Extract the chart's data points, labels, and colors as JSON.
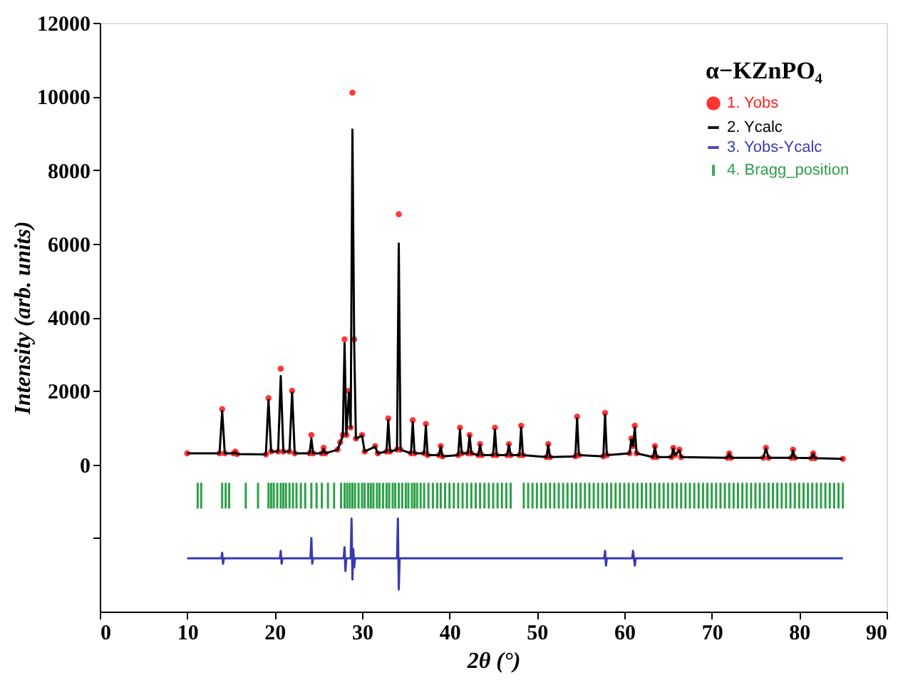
{
  "chart_data": {
    "type": "scatter",
    "xlabel": "2θ (°)",
    "ylabel": "Intensity (arb. units)",
    "legend_title": "α−KZnPO₄",
    "x": [
      10,
      13.7,
      14.0,
      14.3,
      15.3,
      15.5,
      15.7,
      19.0,
      19.3,
      19.6,
      20.4,
      20.7,
      21.0,
      21.7,
      22.0,
      22.3,
      24.0,
      24.2,
      24.4,
      25.4,
      25.6,
      25.8,
      27.2,
      27.5,
      27.8,
      28.0,
      28.2,
      28.5,
      28.7,
      28.9,
      29.1,
      29.3,
      30.0,
      30.3,
      31.5,
      31.8,
      32.8,
      33.0,
      33.2,
      34.0,
      34.2,
      34.4,
      35.6,
      35.8,
      36.0,
      37.1,
      37.3,
      37.5,
      38.8,
      39.0,
      39.2,
      41.0,
      41.2,
      41.4,
      42.1,
      42.3,
      42.5,
      43.3,
      43.5,
      43.7,
      45.0,
      45.2,
      45.4,
      46.6,
      46.8,
      47.0,
      48.0,
      48.2,
      48.4,
      51.1,
      51.3,
      51.5,
      54.4,
      54.6,
      54.8,
      57.6,
      57.8,
      58.0,
      60.6,
      60.8,
      61.0,
      61.2,
      61.4,
      63.3,
      63.5,
      63.7,
      65.4,
      65.6,
      65.8,
      66.3,
      66.5,
      71.8,
      72.0,
      72.2,
      75.9,
      76.2,
      76.5,
      79.1,
      79.3,
      79.5,
      81.4,
      81.6,
      81.8,
      85
    ],
    "series": [
      {
        "name": "1. Yobs",
        "marker": "circle",
        "color": "#ff2020",
        "values": [
          300,
          300,
          1500,
          300,
          300,
          350,
          280,
          270,
          1800,
          350,
          350,
          2600,
          350,
          350,
          2000,
          300,
          300,
          800,
          300,
          300,
          450,
          300,
          400,
          600,
          800,
          3400,
          800,
          2000,
          1000,
          10100,
          3400,
          700,
          800,
          350,
          500,
          300,
          350,
          1250,
          350,
          400,
          6800,
          400,
          300,
          1200,
          300,
          300,
          1100,
          250,
          250,
          500,
          220,
          250,
          1000,
          300,
          300,
          800,
          300,
          250,
          550,
          250,
          250,
          1000,
          250,
          250,
          550,
          250,
          250,
          1050,
          250,
          200,
          550,
          200,
          220,
          1300,
          250,
          220,
          1400,
          250,
          300,
          700,
          500,
          1050,
          300,
          200,
          500,
          200,
          200,
          450,
          250,
          400,
          200,
          180,
          300,
          180,
          180,
          450,
          180,
          180,
          400,
          180,
          170,
          300,
          170,
          150
        ]
      },
      {
        "name": "2. Ycalc",
        "type": "line",
        "color": "#000000",
        "values": [
          300,
          300,
          1450,
          300,
          300,
          330,
          280,
          270,
          1750,
          350,
          350,
          2400,
          350,
          350,
          1950,
          300,
          300,
          700,
          300,
          300,
          420,
          300,
          400,
          580,
          780,
          3300,
          800,
          1950,
          1000,
          9100,
          3300,
          700,
          780,
          350,
          480,
          300,
          350,
          1200,
          350,
          400,
          6000,
          400,
          300,
          1150,
          300,
          300,
          1050,
          250,
          250,
          480,
          220,
          250,
          950,
          300,
          300,
          780,
          300,
          250,
          530,
          250,
          250,
          950,
          250,
          250,
          530,
          250,
          250,
          1000,
          250,
          200,
          530,
          200,
          220,
          1250,
          250,
          220,
          1350,
          250,
          300,
          680,
          500,
          1000,
          300,
          200,
          480,
          200,
          200,
          430,
          250,
          380,
          200,
          180,
          290,
          180,
          180,
          430,
          180,
          180,
          380,
          180,
          170,
          290,
          170,
          150
        ]
      },
      {
        "name": "3. Yobs-Ycalc",
        "type": "line",
        "color": "#3a3ab0",
        "x": [
          10,
          13.9,
          14.0,
          14.1,
          14.2,
          20.6,
          20.7,
          20.8,
          20.9,
          24.1,
          24.2,
          24.3,
          24.4,
          27.9,
          28.0,
          28.1,
          28.2,
          28.7,
          28.8,
          28.9,
          29.0,
          29.1,
          29.2,
          34.0,
          34.1,
          34.2,
          34.3,
          57.7,
          57.8,
          57.9,
          58.0,
          60.9,
          61.0,
          61.2,
          61.3,
          85
        ],
        "values": [
          -2550,
          -2550,
          -2400,
          -2700,
          -2550,
          -2550,
          -2350,
          -2700,
          -2550,
          -2550,
          -2000,
          -2700,
          -2550,
          -2550,
          -2250,
          -2900,
          -2550,
          -2550,
          -1470,
          -3130,
          -2300,
          -2800,
          -2550,
          -2550,
          -1470,
          -3400,
          -2550,
          -2550,
          -2350,
          -2750,
          -2550,
          -2550,
          -2350,
          -2750,
          -2550,
          -2550
        ]
      },
      {
        "name": "4. Bragg_position",
        "type": "bar",
        "color": "#2ca048",
        "base": [
          -1200,
          -1200,
          -1200,
          -1200,
          -1200,
          -1200,
          -1200,
          -1200,
          -1200,
          -1200,
          -1200,
          -1200,
          -1200,
          -1200,
          -1200,
          -1200,
          -1200,
          -1200,
          -1200,
          -1200,
          -1200,
          -1200,
          -1200,
          -1200,
          -1200,
          -1200,
          -1200,
          -1200,
          -1200,
          -1200,
          -1200,
          -1200,
          -1200,
          -1200,
          -1200,
          -1200,
          -1200,
          -1200,
          -1200,
          -1200,
          -1200,
          -1200,
          -1200,
          -1200,
          -1200,
          -1200,
          -1200,
          -1200,
          -1200,
          -1200,
          -1200,
          -1200,
          -1200,
          -1200,
          -1200,
          -1200,
          -1200,
          -1200,
          -1200,
          -1200,
          -1200,
          -1200,
          -1200,
          -1200,
          -1200,
          -1200,
          -1200,
          -1200,
          -1200,
          -1200,
          -1200,
          -1200,
          -1200,
          -1200,
          -1200,
          -1200,
          -1200,
          -1200,
          -1200,
          -1200,
          -1200,
          -1200,
          -1200,
          -1200,
          -1200,
          -1200,
          -1200,
          -1200,
          -1200,
          -1200,
          -1200,
          -1200,
          -1200,
          -1200,
          -1200,
          -1200,
          -1200,
          -1200,
          -1200,
          -1200,
          -1200,
          -1200,
          -1200,
          -1200,
          -1200,
          -1200,
          -1200,
          -1200,
          -1200,
          -1200,
          -1200,
          -1200,
          -1200,
          -1200,
          -1200,
          -1200,
          -1200,
          -1200,
          -1200,
          -1200,
          -1200,
          -1200,
          -1200,
          -1200,
          -1200,
          -1200,
          -1200,
          -1200,
          -1200,
          -1200,
          -1200,
          -1200,
          -1200,
          -1200,
          -1200,
          -1200,
          -1200,
          -1200,
          -1200,
          -1200,
          -1200,
          -1200,
          -1200,
          -1200,
          -1200,
          -1200
        ],
        "x": [
          11.2,
          11.6,
          14.0,
          14.4,
          14.8,
          16.7,
          18.1,
          19.3,
          19.6,
          19.9,
          20.3,
          20.7,
          21.0,
          21.3,
          21.7,
          22.1,
          22.5,
          23.0,
          23.5,
          24.2,
          24.8,
          25.4,
          26.1,
          26.8,
          27.6,
          28.0,
          28.3,
          28.6,
          28.9,
          29.2,
          29.6,
          30.0,
          30.3,
          30.7,
          31.0,
          31.3,
          31.7,
          32.0,
          32.4,
          32.8,
          33.1,
          33.5,
          33.8,
          34.2,
          34.6,
          35.0,
          35.3,
          35.7,
          36.0,
          36.3,
          36.7,
          37.1,
          37.6,
          38.1,
          38.6,
          39.0,
          39.5,
          40.0,
          40.5,
          41.0,
          41.5,
          42.0,
          42.5,
          43.0,
          43.5,
          44.0,
          44.5,
          45.0,
          45.5,
          46.0,
          46.5,
          47.0,
          48.5,
          49.0,
          49.5,
          50.0,
          50.5,
          51.0,
          51.5,
          52.0,
          52.5,
          53.0,
          53.5,
          54.0,
          54.5,
          55.0,
          55.5,
          56.0,
          56.5,
          57.0,
          57.5,
          58.0,
          58.5,
          59.0,
          59.5,
          60.0,
          60.5,
          61.0,
          61.5,
          62.0,
          62.5,
          63.0,
          63.5,
          64.0,
          64.5,
          65.0,
          65.5,
          66.0,
          66.5,
          67.0,
          67.5,
          68.0,
          68.5,
          69.0,
          69.5,
          70.0,
          70.5,
          71.0,
          71.5,
          72.0,
          72.5,
          73.0,
          73.5,
          74.0,
          74.5,
          75.0,
          75.5,
          76.0,
          76.5,
          77.0,
          77.5,
          78.0,
          78.5,
          79.0,
          79.5,
          80.0,
          80.5,
          81.0,
          81.5,
          82.0,
          82.5,
          83.0,
          83.5,
          84.0,
          84.5,
          85.0
        ],
        "values": [
          700,
          700,
          700,
          700,
          700,
          700,
          700,
          700,
          700,
          700,
          700,
          700,
          700,
          700,
          700,
          700,
          700,
          700,
          700,
          700,
          700,
          700,
          700,
          700,
          700,
          700,
          700,
          700,
          700,
          700,
          700,
          700,
          700,
          700,
          700,
          700,
          700,
          700,
          700,
          700,
          700,
          700,
          700,
          700,
          700,
          700,
          700,
          700,
          700,
          700,
          700,
          700,
          700,
          700,
          700,
          700,
          700,
          700,
          700,
          700,
          700,
          700,
          700,
          700,
          700,
          700,
          700,
          700,
          700,
          700,
          700,
          700,
          700,
          700,
          700,
          700,
          700,
          700,
          700,
          700,
          700,
          700,
          700,
          700,
          700,
          700,
          700,
          700,
          700,
          700,
          700,
          700,
          700,
          700,
          700,
          700,
          700,
          700,
          700,
          700,
          700,
          700,
          700,
          700,
          700,
          700,
          700,
          700,
          700,
          700,
          700,
          700,
          700,
          700,
          700,
          700,
          700,
          700,
          700,
          700,
          700,
          700,
          700,
          700,
          700,
          700,
          700,
          700,
          700,
          700,
          700,
          700,
          700,
          700,
          700,
          700,
          700,
          700,
          700,
          700,
          700,
          700,
          700,
          700,
          700,
          700
        ]
      }
    ],
    "xlim": [
      0,
      90
    ],
    "xticks": [
      0,
      10,
      20,
      30,
      40,
      50,
      60,
      70,
      80,
      90
    ],
    "ylim": [
      -4000,
      12000
    ],
    "yticks": [
      {
        "value": -2000,
        "label": null
      },
      0,
      2000,
      4000,
      6000,
      8000,
      10000,
      12000
    ],
    "grid": false,
    "legend": "top right"
  }
}
